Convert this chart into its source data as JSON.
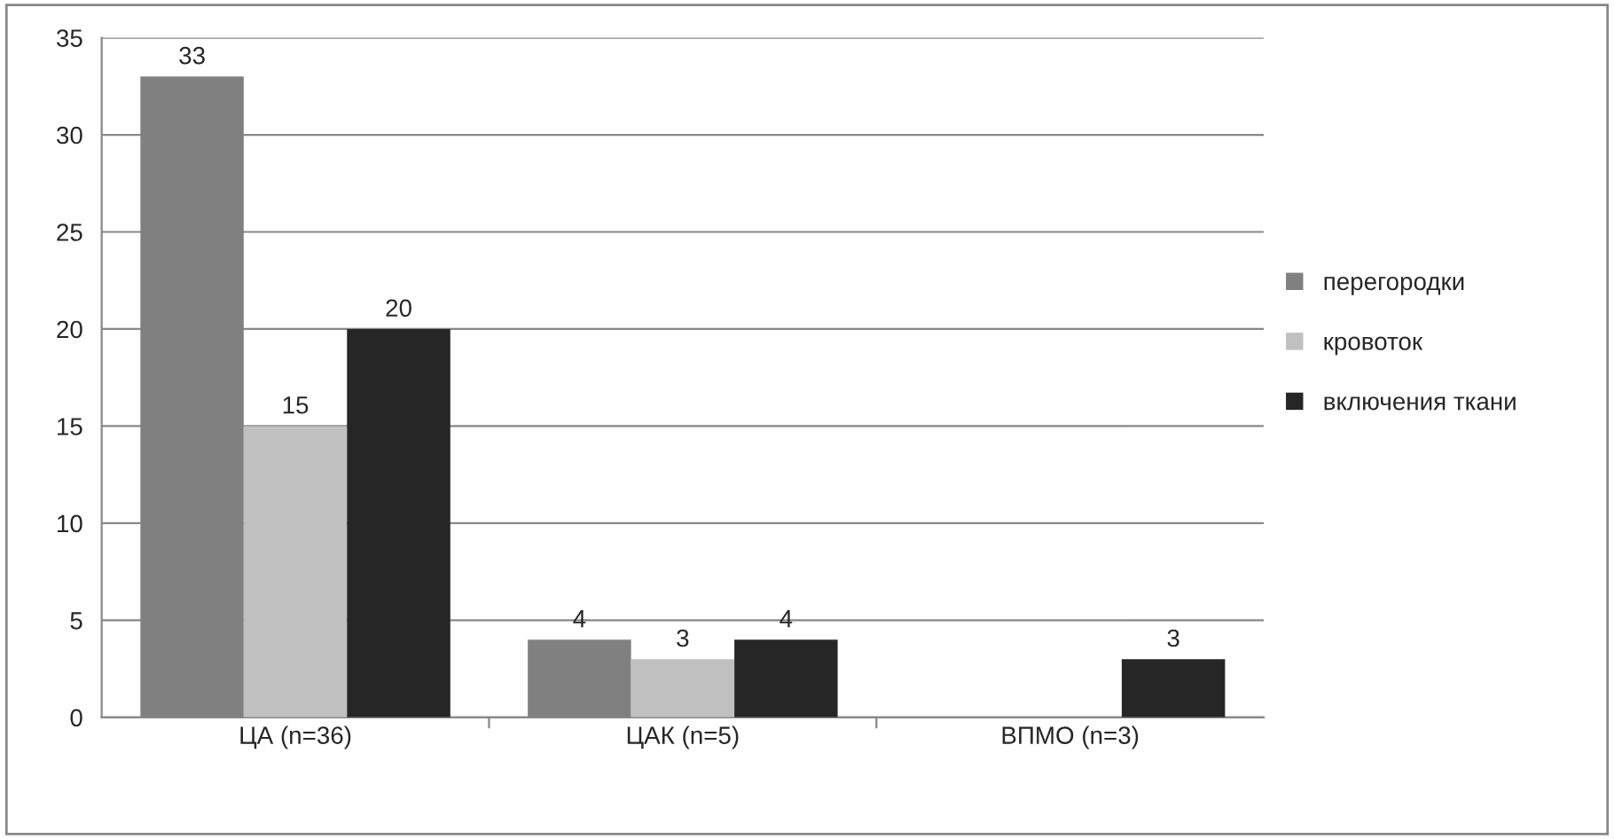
{
  "chart_data": {
    "type": "bar",
    "categories": [
      "ЦА (n=36)",
      "ЦАК (n=5)",
      "ВПМО (n=3)"
    ],
    "series": [
      {
        "name": "перегородки",
        "color": "#808080",
        "values": [
          33,
          4,
          null
        ],
        "value_labels": [
          "33",
          "4",
          null
        ]
      },
      {
        "name": "кровоток",
        "color": "#c0c0c0",
        "values": [
          15,
          3,
          null
        ],
        "value_labels": [
          "15",
          "3",
          null
        ]
      },
      {
        "name": "включения ткани",
        "color": "#262626",
        "values": [
          20,
          4,
          3
        ],
        "value_labels": [
          "20",
          "4",
          "3"
        ]
      }
    ],
    "ylim": [
      0,
      35
    ],
    "yticks": [
      0,
      5,
      10,
      15,
      20,
      25,
      30,
      35
    ],
    "grid": "y",
    "legend": "right"
  }
}
